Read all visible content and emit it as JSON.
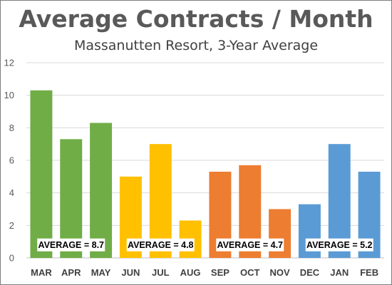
{
  "chart_data": {
    "type": "bar",
    "title": "Average Contracts / Month",
    "subtitle": "Massanutten Resort, 3-Year Average",
    "xlabel": "",
    "ylabel": "",
    "ylim": [
      0,
      12
    ],
    "yticks": [
      0,
      2,
      4,
      6,
      8,
      10,
      12
    ],
    "grid": true,
    "categories": [
      "MAR",
      "APR",
      "MAY",
      "JUN",
      "JUL",
      "AUG",
      "SEP",
      "OCT",
      "NOV",
      "DEC",
      "JAN",
      "FEB"
    ],
    "values": [
      10.3,
      7.3,
      8.3,
      5.0,
      7.0,
      2.3,
      5.3,
      5.7,
      3.0,
      3.3,
      7.0,
      5.3
    ],
    "bar_colors": [
      "#70ad47",
      "#70ad47",
      "#70ad47",
      "#ffc000",
      "#ffc000",
      "#ffc000",
      "#ed7d31",
      "#ed7d31",
      "#ed7d31",
      "#5b9bd5",
      "#5b9bd5",
      "#5b9bd5"
    ],
    "annotations": [
      {
        "text": "AVERAGE = 8.7",
        "categories": [
          "MAR",
          "APR",
          "MAY"
        ],
        "value": 0.8
      },
      {
        "text": "AVERAGE = 4.8",
        "categories": [
          "JUN",
          "JUL",
          "AUG"
        ],
        "value": 0.8
      },
      {
        "text": "AVERAGE = 4.7",
        "categories": [
          "SEP",
          "OCT",
          "NOV"
        ],
        "value": 0.8
      },
      {
        "text": "AVERAGE = 5.2",
        "categories": [
          "DEC",
          "JAN",
          "FEB"
        ],
        "value": 0.8
      }
    ]
  }
}
